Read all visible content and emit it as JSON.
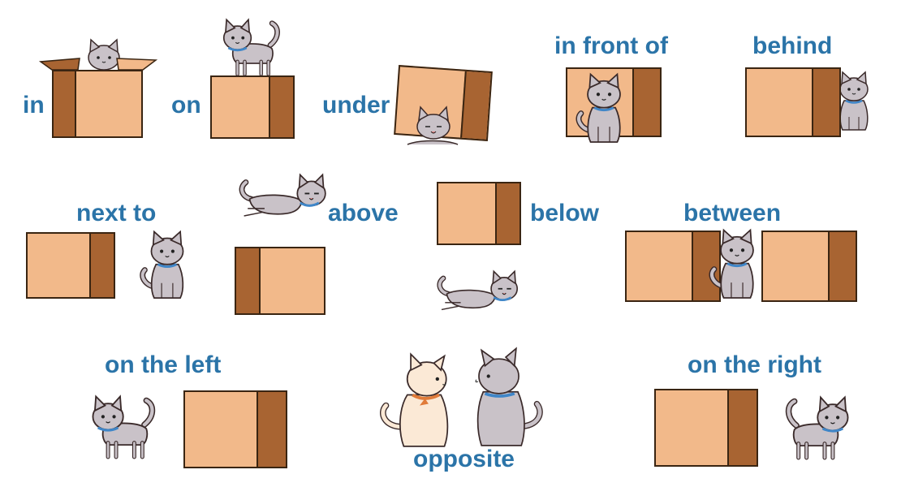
{
  "labels": {
    "in": "in",
    "on": "on",
    "under": "under",
    "in_front_of": "in front of",
    "behind": "behind",
    "next_to": "next to",
    "above": "above",
    "below": "below",
    "between": "between",
    "on_the_left": "on the left",
    "opposite": "opposite",
    "on_the_right": "on the right"
  },
  "colors": {
    "label": "#2b74a8",
    "box_front": "#f2b98a",
    "box_side": "#a86432",
    "outline": "#3a2512",
    "cat_grey": "#c9c2c8",
    "cat_cream": "#fbe9d6",
    "collar_blue": "#3f86c8",
    "collar_orange": "#e07b39"
  }
}
